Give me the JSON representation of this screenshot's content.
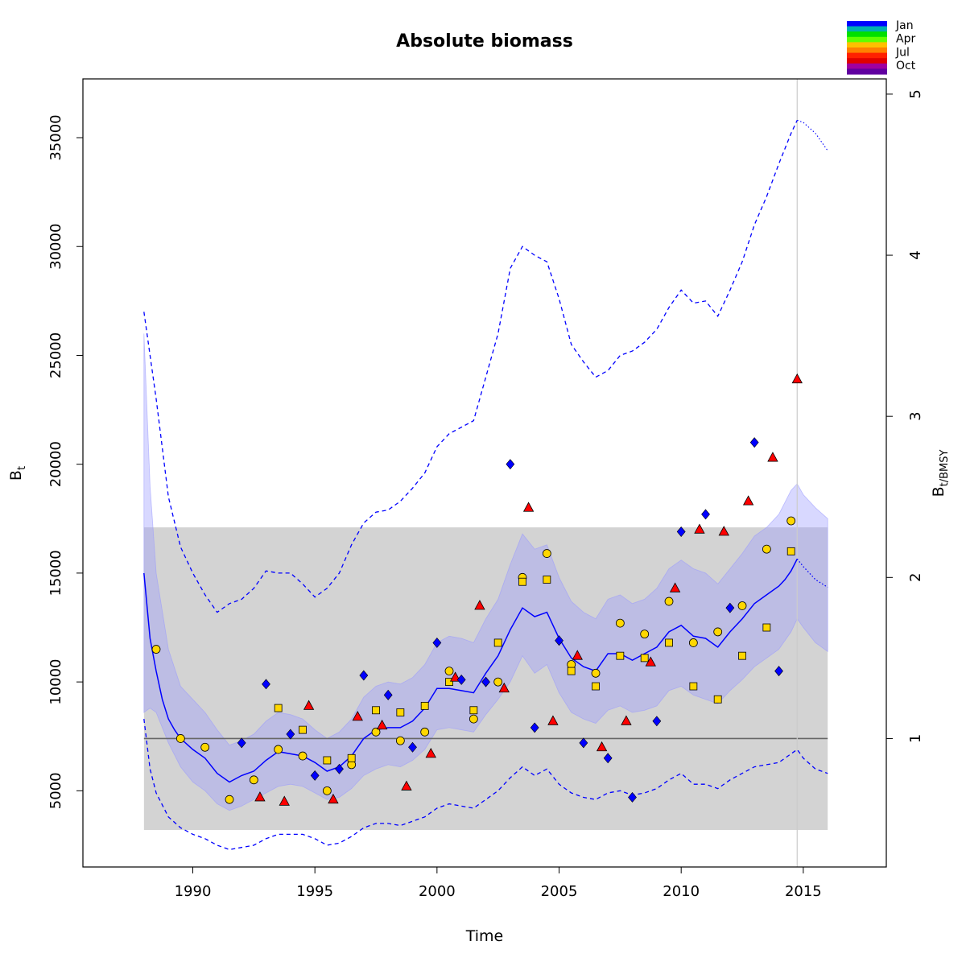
{
  "chart_data": {
    "type": "line",
    "title": "Absolute biomass",
    "xlabel": "Time",
    "ylabel": "B",
    "ylabel_sub": "t",
    "y2label": "B",
    "y2label_sub": "t/BMSY",
    "xlim": [
      1985.5,
      2018.4
    ],
    "ylim": [
      1500,
      37700
    ],
    "xticks": [
      "1990",
      "1995",
      "2000",
      "2005",
      "2010",
      "2015"
    ],
    "yticks": [
      "5000",
      "10000",
      "15000",
      "20000",
      "25000",
      "30000",
      "35000"
    ],
    "y2ticks": [
      "1",
      "2",
      "3",
      "4",
      "5"
    ],
    "bmsy": 7400,
    "bmsy_band": [
      3200,
      17100
    ],
    "band_x_range": [
      1988,
      2016
    ],
    "vertical_line_x": 2014.75,
    "grid": false,
    "legend_position": "top-right",
    "legend": {
      "labels": [
        "Jan",
        "Apr",
        "Jul",
        "Oct"
      ],
      "colors": [
        "#0000FF",
        "#00B0B0",
        "#00E000",
        "#60FF00",
        "#FFC000",
        "#FF8000",
        "#FF2000",
        "#E00000",
        "#A000A0",
        "#6000A0"
      ]
    },
    "colors": {
      "estimate": "#0000FF",
      "ci_fill": "#B8BEE0",
      "bmsy_band": "#D3D3D3",
      "bmsy_line": "#666666",
      "q1": "#0000FF",
      "q2": "#FFD700",
      "q3": "#FFD700",
      "q4": "#FF0000"
    },
    "series": [
      {
        "kind": "estimate",
        "x": [
          1988,
          1988.25,
          1988.5,
          1988.75,
          1989,
          1989.25,
          1989.5,
          1990,
          1990.5,
          1991,
          1991.5,
          1992,
          1992.5,
          1993,
          1993.5,
          1994,
          1994.5,
          1995,
          1995.5,
          1996,
          1996.5,
          1997,
          1997.5,
          1998,
          1998.5,
          1999,
          1999.5,
          2000,
          2000.5,
          2001,
          2001.5,
          2002,
          2002.5,
          2003,
          2003.5,
          2004,
          2004.5,
          2005,
          2005.5,
          2006,
          2006.5,
          2007,
          2007.5,
          2008,
          2008.5,
          2009,
          2009.5,
          2010,
          2010.5,
          2011,
          2011.5,
          2012,
          2012.5,
          2013,
          2013.5,
          2014,
          2014.25,
          2014.5,
          2014.75
        ],
        "y": [
          15000,
          12000,
          10500,
          9200,
          8300,
          7800,
          7400,
          6900,
          6500,
          5800,
          5400,
          5700,
          5900,
          6400,
          6800,
          6700,
          6600,
          6300,
          5900,
          6100,
          6600,
          7400,
          7800,
          7900,
          7900,
          8200,
          8800,
          9700,
          9700,
          9600,
          9500,
          10400,
          11200,
          12400,
          13400,
          13000,
          13200,
          12000,
          11100,
          10700,
          10500,
          11300,
          11300,
          11000,
          11300,
          11600,
          12300,
          12600,
          12100,
          12000,
          11600,
          12300,
          12900,
          13600,
          14000,
          14400,
          14700,
          15100,
          15650
        ]
      },
      {
        "kind": "estimate_forecast",
        "x": [
          2014.75,
          2015,
          2015.5,
          2016
        ],
        "y": [
          15650,
          15300,
          14700,
          14350
        ]
      },
      {
        "kind": "ci_lower",
        "x": [
          1988,
          1988.25,
          1988.5,
          1989,
          1989.5,
          1990,
          1990.5,
          1991,
          1991.5,
          1992,
          1992.5,
          1993,
          1993.5,
          1994,
          1994.5,
          1995,
          1995.5,
          1996,
          1996.5,
          1997,
          1997.5,
          1998,
          1998.5,
          1999,
          1999.5,
          2000,
          2000.5,
          2001,
          2001.5,
          2002,
          2002.5,
          2003,
          2003.5,
          2004,
          2004.5,
          2005,
          2005.5,
          2006,
          2006.5,
          2007,
          2007.5,
          2008,
          2008.5,
          2009,
          2009.5,
          2010,
          2010.5,
          2011,
          2011.5,
          2012,
          2012.5,
          2013,
          2013.5,
          2014,
          2014.5,
          2014.75,
          2015,
          2015.5,
          2016
        ],
        "y": [
          8600,
          8800,
          8600,
          7200,
          6100,
          5400,
          5000,
          4400,
          4100,
          4300,
          4600,
          4900,
          5200,
          5300,
          5200,
          4900,
          4600,
          4700,
          5100,
          5700,
          6000,
          6200,
          6100,
          6400,
          6900,
          7800,
          7900,
          7800,
          7700,
          8500,
          9200,
          10000,
          11200,
          10400,
          10800,
          9500,
          8600,
          8300,
          8100,
          8700,
          8900,
          8600,
          8700,
          8900,
          9600,
          9800,
          9400,
          9200,
          9000,
          9600,
          10100,
          10700,
          11100,
          11500,
          12300,
          12900,
          12500,
          11800,
          11400
        ]
      },
      {
        "kind": "ci_upper",
        "x": [
          1988,
          1988.25,
          1988.5,
          1989,
          1989.5,
          1990,
          1990.5,
          1991,
          1991.5,
          1992,
          1992.5,
          1993,
          1993.5,
          1994,
          1994.5,
          1995,
          1995.5,
          1996,
          1996.5,
          1997,
          1997.5,
          1998,
          1998.5,
          1999,
          1999.5,
          2000,
          2000.5,
          2001,
          2001.5,
          2002,
          2002.5,
          2003,
          2003.5,
          2004,
          2004.5,
          2005,
          2005.5,
          2006,
          2006.5,
          2007,
          2007.5,
          2008,
          2008.5,
          2009,
          2009.5,
          2010,
          2010.5,
          2011,
          2011.5,
          2012,
          2012.5,
          2013,
          2013.5,
          2014,
          2014.5,
          2014.75,
          2015,
          2015.5,
          2016
        ],
        "y": [
          26000,
          19000,
          15000,
          11500,
          9800,
          9200,
          8600,
          7800,
          7100,
          7300,
          7600,
          8200,
          8600,
          8500,
          8300,
          7800,
          7400,
          7700,
          8300,
          9300,
          9800,
          10000,
          9900,
          10200,
          10800,
          11800,
          12100,
          12000,
          11800,
          12900,
          13800,
          15400,
          16800,
          16100,
          16300,
          14800,
          13700,
          13200,
          12900,
          13800,
          14000,
          13600,
          13800,
          14300,
          15200,
          15600,
          15200,
          15000,
          14500,
          15200,
          15900,
          16700,
          17100,
          17700,
          18800,
          19100,
          18600,
          18000,
          17500
        ]
      },
      {
        "kind": "outer_upper",
        "x": [
          1988,
          1988.25,
          1988.5,
          1989,
          1989.5,
          1990,
          1990.5,
          1991,
          1991.5,
          1992,
          1992.5,
          1993,
          1993.5,
          1994,
          1994.5,
          1995,
          1995.5,
          1996,
          1996.5,
          1997,
          1997.5,
          1998,
          1998.5,
          1999,
          1999.5,
          2000,
          2000.5,
          2001,
          2001.5,
          2002,
          2002.5,
          2003,
          2003.5,
          2004,
          2004.5,
          2005,
          2005.5,
          2006,
          2006.5,
          2007,
          2007.5,
          2008,
          2008.5,
          2009,
          2009.5,
          2010,
          2010.5,
          2011,
          2011.5,
          2012,
          2012.5,
          2013,
          2013.5,
          2014,
          2014.5,
          2014.75
        ],
        "y": [
          27000,
          25000,
          23000,
          18500,
          16200,
          15000,
          14000,
          13200,
          13600,
          13800,
          14300,
          15100,
          15000,
          15000,
          14500,
          13900,
          14300,
          15000,
          16300,
          17300,
          17800,
          17900,
          18300,
          18900,
          19600,
          20800,
          21400,
          21700,
          22000,
          24000,
          26000,
          29000,
          30000,
          29600,
          29300,
          27600,
          25500,
          24700,
          24000,
          24300,
          25000,
          25200,
          25600,
          26200,
          27200,
          28000,
          27400,
          27500,
          26800,
          28000,
          29300,
          31000,
          32300,
          33800,
          35200,
          35800
        ]
      },
      {
        "kind": "outer_upper_forecast",
        "x": [
          2014.75,
          2015,
          2015.5,
          2016
        ],
        "y": [
          35800,
          35700,
          35200,
          34400
        ]
      },
      {
        "kind": "outer_lower",
        "x": [
          1988,
          1988.25,
          1988.5,
          1989,
          1989.5,
          1990,
          1990.5,
          1991,
          1991.5,
          1992,
          1992.5,
          1993,
          1993.5,
          1994,
          1994.5,
          1995,
          1995.5,
          1996,
          1996.5,
          1997,
          1997.5,
          1998,
          1998.5,
          1999,
          1999.5,
          2000,
          2000.5,
          2001,
          2001.5,
          2002,
          2002.5,
          2003,
          2003.5,
          2004,
          2004.5,
          2005,
          2005.5,
          2006,
          2006.5,
          2007,
          2007.5,
          2008,
          2008.5,
          2009,
          2009.5,
          2010,
          2010.5,
          2011,
          2011.5,
          2012,
          2012.5,
          2013,
          2013.5,
          2014,
          2014.5,
          2014.75,
          2015,
          2015.5,
          2016
        ],
        "y": [
          8300,
          6000,
          4900,
          3800,
          3300,
          3000,
          2800,
          2500,
          2300,
          2400,
          2500,
          2800,
          3000,
          3000,
          3000,
          2800,
          2500,
          2600,
          2900,
          3300,
          3500,
          3500,
          3400,
          3600,
          3800,
          4200,
          4400,
          4300,
          4200,
          4600,
          5000,
          5600,
          6100,
          5700,
          6000,
          5300,
          4900,
          4700,
          4600,
          4900,
          5000,
          4800,
          4900,
          5100,
          5500,
          5800,
          5300,
          5300,
          5100,
          5500,
          5800,
          6100,
          6200,
          6300,
          6700,
          6900,
          6500,
          6000,
          5800
        ]
      }
    ],
    "observations": [
      {
        "quarter": "q2",
        "marker": "circle",
        "points": [
          [
            1988.5,
            11500
          ],
          [
            1989.5,
            7400
          ],
          [
            1990.5,
            7000
          ],
          [
            1991.5,
            4600
          ],
          [
            1992.5,
            5500
          ],
          [
            1993.5,
            6900
          ],
          [
            1994.5,
            6600
          ],
          [
            1995.5,
            5000
          ],
          [
            1996.5,
            6200
          ],
          [
            1997.5,
            7700
          ],
          [
            1998.5,
            7300
          ],
          [
            1999.5,
            7700
          ],
          [
            2000.5,
            10500
          ],
          [
            2001.5,
            8300
          ],
          [
            2002.5,
            10000
          ],
          [
            2003.5,
            14800
          ],
          [
            2004.5,
            15900
          ],
          [
            2005.5,
            10800
          ],
          [
            2006.5,
            10400
          ],
          [
            2007.5,
            12700
          ],
          [
            2008.5,
            12200
          ],
          [
            2009.5,
            13700
          ],
          [
            2010.5,
            11800
          ],
          [
            2011.5,
            12300
          ],
          [
            2012.5,
            13500
          ],
          [
            2013.5,
            16100
          ],
          [
            2014.5,
            17400
          ]
        ]
      },
      {
        "quarter": "q3",
        "marker": "square",
        "points": [
          [
            1993.5,
            8800
          ],
          [
            1994.5,
            7800
          ],
          [
            1995.5,
            6400
          ],
          [
            1996.5,
            6500
          ],
          [
            1997.5,
            8700
          ],
          [
            1998.5,
            8600
          ],
          [
            1999.5,
            8900
          ],
          [
            2000.5,
            10000
          ],
          [
            2001.5,
            8700
          ],
          [
            2002.5,
            11800
          ],
          [
            2003.5,
            14600
          ],
          [
            2004.5,
            14700
          ],
          [
            2005.5,
            10500
          ],
          [
            2006.5,
            9800
          ],
          [
            2007.5,
            11200
          ],
          [
            2008.5,
            11100
          ],
          [
            2009.5,
            11800
          ],
          [
            2010.5,
            9800
          ],
          [
            2011.5,
            9200
          ],
          [
            2012.5,
            11200
          ],
          [
            2013.5,
            12500
          ],
          [
            2014.5,
            16000
          ]
        ]
      },
      {
        "quarter": "q4",
        "marker": "triangle",
        "points": [
          [
            1992.75,
            4700
          ],
          [
            1993.75,
            4500
          ],
          [
            1994.75,
            8900
          ],
          [
            1995.75,
            4600
          ],
          [
            1996.75,
            8400
          ],
          [
            1997.75,
            8000
          ],
          [
            1998.75,
            5200
          ],
          [
            1999.75,
            6700
          ],
          [
            2000.75,
            10200
          ],
          [
            2001.75,
            13500
          ],
          [
            2002.75,
            9700
          ],
          [
            2003.75,
            18000
          ],
          [
            2004.75,
            8200
          ],
          [
            2005.75,
            11200
          ],
          [
            2006.75,
            7000
          ],
          [
            2007.75,
            8200
          ],
          [
            2008.75,
            10900
          ],
          [
            2009.75,
            14300
          ],
          [
            2010.75,
            17000
          ],
          [
            2011.75,
            16900
          ],
          [
            2012.75,
            18300
          ],
          [
            2013.75,
            20300
          ],
          [
            2014.75,
            23900
          ]
        ]
      },
      {
        "quarter": "q1",
        "marker": "diamond",
        "points": [
          [
            1992,
            7200
          ],
          [
            1993,
            9900
          ],
          [
            1994,
            7600
          ],
          [
            1995,
            5700
          ],
          [
            1996,
            6000
          ],
          [
            1997,
            10300
          ],
          [
            1998,
            9400
          ],
          [
            1999,
            7000
          ],
          [
            2000,
            11800
          ],
          [
            2001,
            10100
          ],
          [
            2002,
            10000
          ],
          [
            2003,
            20000
          ],
          [
            2004,
            7900
          ],
          [
            2005,
            11900
          ],
          [
            2006,
            7200
          ],
          [
            2007,
            6500
          ],
          [
            2008,
            4700
          ],
          [
            2009,
            8200
          ],
          [
            2010,
            16900
          ],
          [
            2011,
            17700
          ],
          [
            2012,
            13400
          ],
          [
            2013,
            21000
          ],
          [
            2014,
            10500
          ]
        ]
      }
    ]
  }
}
